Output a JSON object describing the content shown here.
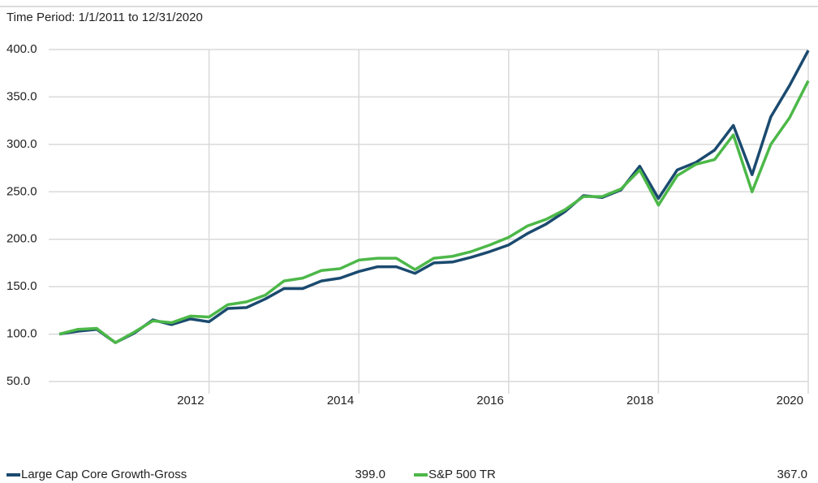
{
  "chart_data": {
    "type": "line",
    "subtitle": "Time Period: 1/1/2011 to 12/31/2020",
    "categories": [
      null,
      null,
      null,
      null,
      null,
      null,
      null,
      null,
      "2012",
      null,
      null,
      null,
      null,
      null,
      null,
      null,
      "2014",
      null,
      null,
      null,
      null,
      null,
      null,
      null,
      "2016",
      null,
      null,
      null,
      null,
      null,
      null,
      null,
      "2018",
      null,
      null,
      null,
      null,
      null,
      null,
      null,
      "2020"
    ],
    "series": [
      {
        "name": "Large Cap Core Growth-Gross",
        "color": "#1b4a6f",
        "end_label": "399.0",
        "values": [
          100,
          103,
          105,
          91,
          101,
          115,
          110,
          116,
          113,
          127,
          128,
          137,
          148,
          148,
          156,
          159,
          166,
          171,
          171,
          164,
          175,
          176,
          181,
          187,
          194,
          206,
          216,
          229,
          246,
          244,
          252,
          277,
          243,
          273,
          281,
          294,
          320,
          268,
          329,
          362,
          399
        ]
      },
      {
        "name": "S&P 500 TR",
        "color": "#4cb848",
        "end_label": "367.0",
        "values": [
          100,
          105,
          106,
          91,
          102,
          114,
          112,
          119,
          118,
          131,
          134,
          141,
          156,
          159,
          167,
          169,
          178,
          180,
          180,
          168,
          180,
          182,
          187,
          194,
          202,
          214,
          221,
          231,
          245,
          245,
          253,
          273,
          236,
          267,
          279,
          284,
          310,
          250,
          300,
          328,
          367
        ]
      }
    ],
    "ylim": [
      50,
      400
    ],
    "yticks": [
      {
        "value": 50,
        "label": "50.0"
      },
      {
        "value": 100,
        "label": "100.0"
      },
      {
        "value": 150,
        "label": "150.0"
      },
      {
        "value": 200,
        "label": "200.0"
      },
      {
        "value": 250,
        "label": "250.0"
      },
      {
        "value": 300,
        "label": "300.0"
      },
      {
        "value": 350,
        "label": "350.0"
      },
      {
        "value": 400,
        "label": "400.0"
      }
    ],
    "grid": true
  }
}
